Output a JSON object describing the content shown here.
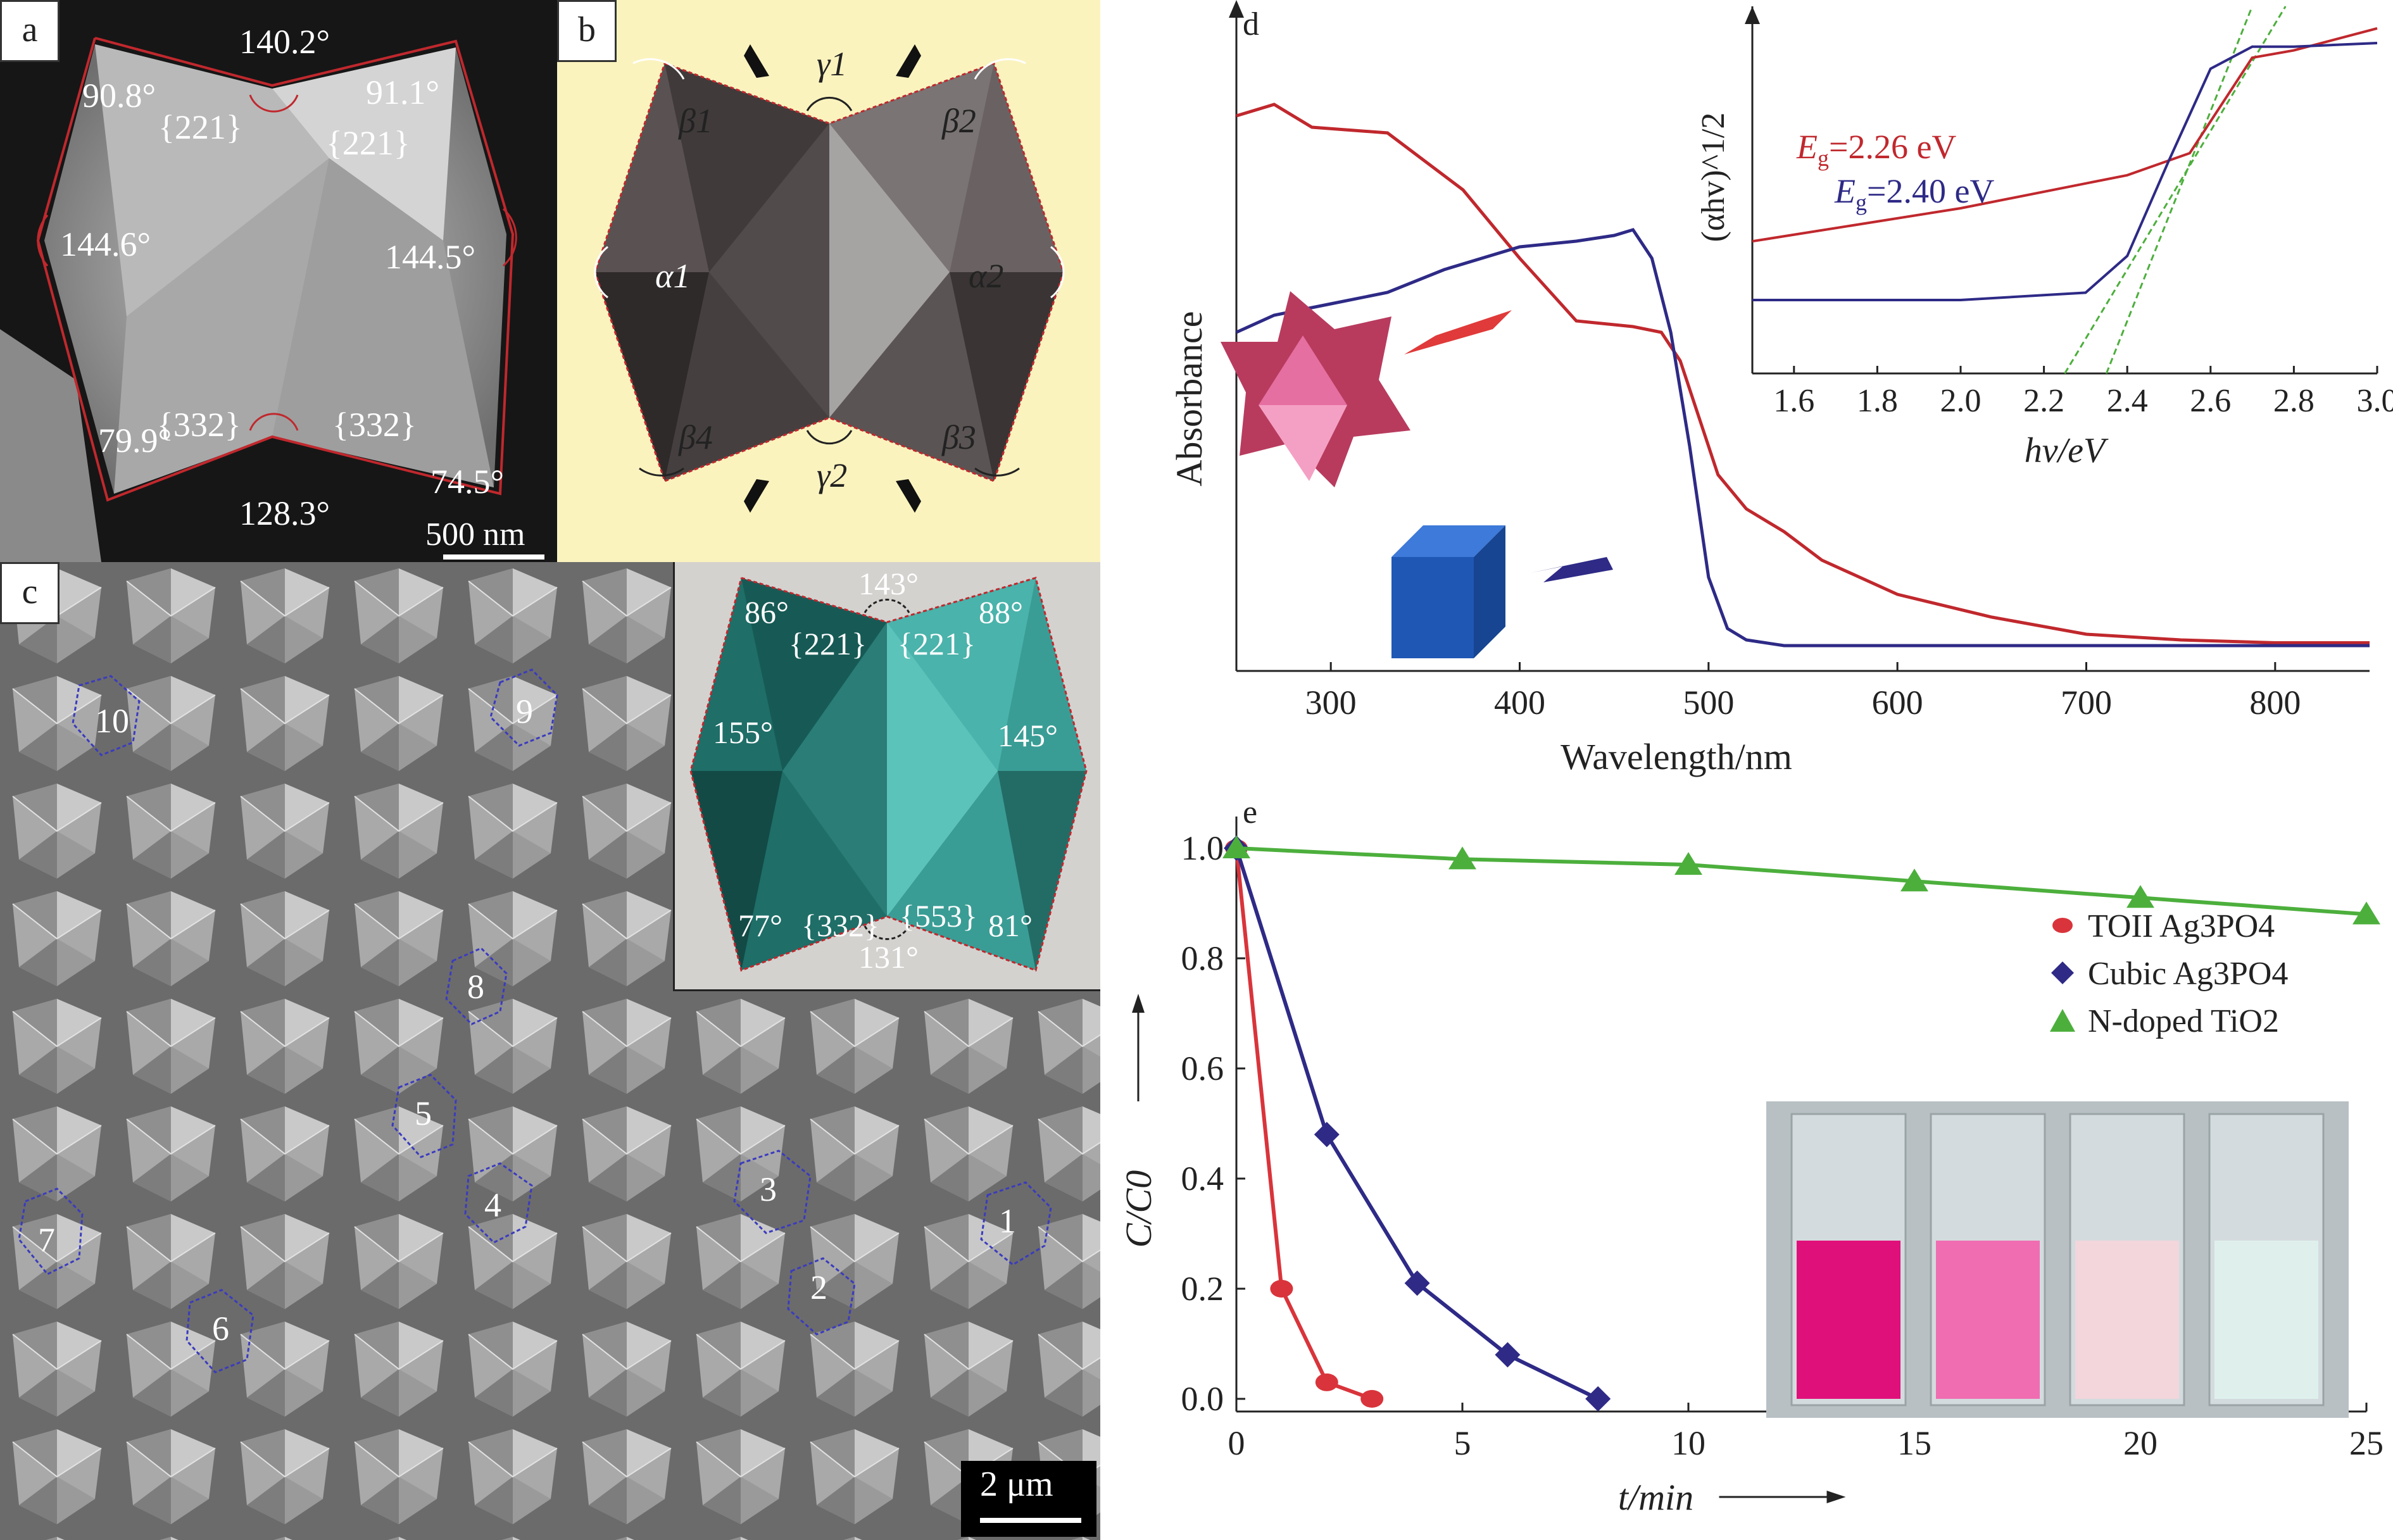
{
  "panels": {
    "a": {
      "letter": "a",
      "angles": [
        "140.2°",
        "90.8°",
        "91.1°",
        "144.6°",
        "144.5°",
        "79.9°",
        "74.5°",
        "128.3°"
      ],
      "facets": [
        "{221}",
        "{221}",
        "{332}",
        "{332}"
      ],
      "scale": "500 nm"
    },
    "b": {
      "letter": "b",
      "labels": [
        "γ1",
        "β1",
        "β2",
        "α1",
        "α2",
        "β4",
        "β3",
        "γ2"
      ]
    },
    "c": {
      "letter": "c",
      "particle_numbers": [
        "1",
        "2",
        "3",
        "4",
        "5",
        "6",
        "7",
        "8",
        "9",
        "10"
      ],
      "scale": "2 μm",
      "inset": {
        "angles": [
          "143°",
          "86°",
          "88°",
          "155°",
          "145°",
          "77°",
          "81°",
          "131°"
        ],
        "facets": [
          "{221}",
          "{221}",
          "{332}",
          "{553}"
        ]
      }
    },
    "d": {
      "letter": "d"
    },
    "e": {
      "letter": "e"
    }
  },
  "chart_data": [
    {
      "type": "line",
      "panel": "d",
      "xlabel": "Wavelength/nm",
      "ylabel": "Absorbance",
      "xlim": [
        250,
        850
      ],
      "xticks": [
        300,
        400,
        500,
        600,
        700,
        800
      ],
      "series": [
        {
          "color": "#c0282d",
          "x": [
            250,
            270,
            290,
            330,
            370,
            400,
            430,
            460,
            475,
            485,
            495,
            505,
            520,
            540,
            560,
            600,
            650,
            700,
            750,
            800,
            850
          ],
          "y": [
            0.93,
            0.95,
            0.91,
            0.9,
            0.8,
            0.68,
            0.57,
            0.56,
            0.55,
            0.5,
            0.4,
            0.3,
            0.24,
            0.2,
            0.15,
            0.09,
            0.05,
            0.02,
            0.01,
            0.005,
            0.005
          ]
        },
        {
          "color": "#2e2a86",
          "x": [
            250,
            270,
            300,
            330,
            360,
            400,
            430,
            450,
            460,
            470,
            480,
            490,
            500,
            510,
            520,
            540,
            600,
            700,
            800,
            850
          ],
          "y": [
            0.55,
            0.58,
            0.6,
            0.62,
            0.66,
            0.7,
            0.71,
            0.72,
            0.73,
            0.68,
            0.55,
            0.35,
            0.12,
            0.03,
            0.01,
            0.0,
            0.0,
            0.0,
            0.0,
            0.0
          ]
        }
      ],
      "inset": {
        "xlabel": "hv/eV",
        "ylabel": "(αhv)^1/2",
        "xlim": [
          1.5,
          3.0
        ],
        "xticks": [
          1.6,
          1.8,
          2.0,
          2.2,
          2.4,
          2.6,
          2.8,
          3.0
        ],
        "legend": [
          {
            "text_sym": "E",
            "text_sub": "g",
            "text_val": "=2.26 eV",
            "color": "#c0282d"
          },
          {
            "text_sym": "E",
            "text_sub": "g",
            "text_val": "=2.40 eV",
            "color": "#2e2a86"
          }
        ],
        "series": [
          {
            "color": "#c0282d",
            "x": [
              1.5,
              2.0,
              2.4,
              2.55,
              2.7,
              2.8,
              3.0
            ],
            "y": [
              0.36,
              0.45,
              0.54,
              0.6,
              0.86,
              0.88,
              0.94
            ]
          },
          {
            "color": "#2e2a86",
            "x": [
              1.5,
              2.0,
              2.3,
              2.4,
              2.5,
              2.6,
              2.7,
              2.8,
              3.0
            ],
            "y": [
              0.2,
              0.2,
              0.22,
              0.32,
              0.58,
              0.83,
              0.89,
              0.89,
              0.9
            ]
          }
        ]
      }
    },
    {
      "type": "line",
      "panel": "e",
      "xlabel": "t/min",
      "ylabel": "C/C0",
      "xlim": [
        0,
        25
      ],
      "ylim": [
        0,
        1.0
      ],
      "xticks": [
        0,
        5,
        10,
        15,
        20,
        25
      ],
      "yticks": [
        "0.0",
        "0.2",
        "0.4",
        "0.6",
        "0.8",
        "1.0"
      ],
      "legend": [
        "TOII Ag3PO4",
        "Cubic Ag3PO4",
        "N-doped TiO2"
      ],
      "series": [
        {
          "name": "TOII Ag3PO4",
          "color": "#d9343b",
          "x": [
            0,
            1,
            2,
            3
          ],
          "y": [
            1.0,
            0.2,
            0.03,
            0.0
          ]
        },
        {
          "name": "Cubic Ag3PO4",
          "color": "#2e2a86",
          "x": [
            0,
            2,
            4,
            6,
            8
          ],
          "y": [
            1.0,
            0.48,
            0.21,
            0.08,
            0.0
          ]
        },
        {
          "name": "N-doped TiO2",
          "color": "#4caf3c",
          "x": [
            0,
            5,
            10,
            15,
            20,
            25
          ],
          "y": [
            1.0,
            0.98,
            0.97,
            0.94,
            0.91,
            0.88
          ]
        }
      ]
    }
  ]
}
